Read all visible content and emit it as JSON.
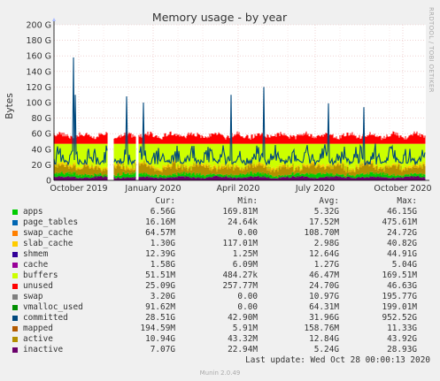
{
  "chart_data": {
    "type": "area",
    "title": "Memory usage - by year",
    "ylabel": "Bytes",
    "y_ticks": [
      "0",
      "20 G",
      "40 G",
      "60 G",
      "80 G",
      "100 G",
      "120 G",
      "140 G",
      "160 G",
      "180 G",
      "200 G"
    ],
    "ylim": [
      0,
      200
    ],
    "x_ticks": [
      "October 2019",
      "January 2020",
      "April 2020",
      "July 2020",
      "October 2020"
    ],
    "grid": true,
    "columns": [
      "Cur:",
      "Min:",
      "Avg:",
      "Max:"
    ],
    "series": [
      {
        "name": "apps",
        "color": "#00cc00",
        "cur": "6.56G",
        "min": "169.81M",
        "avg": "5.32G",
        "max": "46.15G"
      },
      {
        "name": "page_tables",
        "color": "#0066b3",
        "cur": "16.16M",
        "min": "24.64k",
        "avg": "17.52M",
        "max": "475.61M"
      },
      {
        "name": "swap_cache",
        "color": "#ff8000",
        "cur": "64.57M",
        "min": "0.00",
        "avg": "108.70M",
        "max": "24.72G"
      },
      {
        "name": "slab_cache",
        "color": "#ffcc00",
        "cur": "1.30G",
        "min": "117.01M",
        "avg": "2.98G",
        "max": "40.82G"
      },
      {
        "name": "shmem",
        "color": "#330099",
        "cur": "12.39G",
        "min": "1.25M",
        "avg": "12.64G",
        "max": "44.91G"
      },
      {
        "name": "cache",
        "color": "#990099",
        "cur": "1.58G",
        "min": "6.09M",
        "avg": "1.27G",
        "max": "5.04G"
      },
      {
        "name": "buffers",
        "color": "#ccff00",
        "cur": "51.51M",
        "min": "484.27k",
        "avg": "46.47M",
        "max": "169.51M"
      },
      {
        "name": "unused",
        "color": "#ff0000",
        "cur": "25.09G",
        "min": "257.77M",
        "avg": "24.70G",
        "max": "46.63G"
      },
      {
        "name": "swap",
        "color": "#808080",
        "cur": "3.20G",
        "min": "0.00",
        "avg": "10.97G",
        "max": "195.77G"
      },
      {
        "name": "vmalloc_used",
        "color": "#008f00",
        "cur": "91.62M",
        "min": "0.00",
        "avg": "64.31M",
        "max": "199.01M"
      },
      {
        "name": "committed",
        "color": "#00487d",
        "cur": "28.51G",
        "min": "42.90M",
        "avg": "31.96G",
        "max": "952.52G"
      },
      {
        "name": "mapped",
        "color": "#b35a00",
        "cur": "194.59M",
        "min": "5.91M",
        "avg": "158.76M",
        "max": "11.33G"
      },
      {
        "name": "active",
        "color": "#b38f00",
        "cur": "10.94G",
        "min": "43.32M",
        "avg": "12.84G",
        "max": "43.92G"
      },
      {
        "name": "inactive",
        "color": "#6b006b",
        "cur": "7.07G",
        "min": "22.94M",
        "avg": "5.24G",
        "max": "28.93G"
      }
    ]
  },
  "last_update": "Last update: Wed Oct 28 00:00:13 2020",
  "footer": "Munin 2.0.49",
  "side_label": "RRDTOOL / TOBI OETIKER"
}
